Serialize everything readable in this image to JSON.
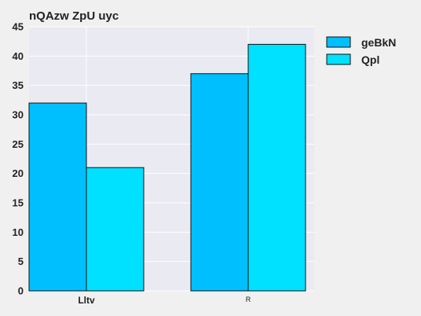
{
  "chart_data": {
    "type": "bar",
    "title": "nQAzw ZpU uyc",
    "categories": [
      "Lltv",
      "R"
    ],
    "series": [
      {
        "name": "geBkN",
        "values": [
          32,
          37
        ],
        "color": "#00bfff"
      },
      {
        "name": "Qpl",
        "values": [
          21,
          42
        ],
        "color": "#00e0ff"
      }
    ],
    "ylim": [
      0,
      45
    ],
    "yticks": [
      0,
      5,
      10,
      15,
      20,
      25,
      30,
      35,
      40,
      45
    ],
    "xlabel": "",
    "ylabel": "",
    "grid": true,
    "legend_position": "top-right",
    "plot_background": "#eaeaf2",
    "grid_color": "#ffffff"
  }
}
